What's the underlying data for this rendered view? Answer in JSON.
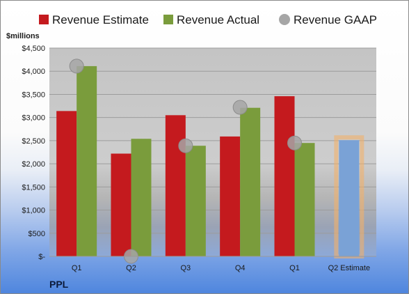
{
  "chart_data": {
    "type": "bar",
    "unit_label": "$millions",
    "ticker": "PPL",
    "categories": [
      "Q1",
      "Q2",
      "Q3",
      "Q4",
      "Q1",
      "Q2 Estimate"
    ],
    "ylim": [
      0,
      4500
    ],
    "y_ticks": [
      "$-",
      "$500",
      "$1,000",
      "$1,500",
      "$2,000",
      "$2,500",
      "$3,000",
      "$3,500",
      "$4,000",
      "$4,500"
    ],
    "y_tick_values": [
      0,
      500,
      1000,
      1500,
      2000,
      2500,
      3000,
      3500,
      4000,
      4500
    ],
    "grid": true,
    "legend_position": "top",
    "series": [
      {
        "name": "Revenue Estimate",
        "type": "bar",
        "color": "#c41a1e",
        "values": [
          3140,
          2220,
          3050,
          2590,
          3460,
          null
        ]
      },
      {
        "name": "Revenue Actual",
        "type": "bar",
        "color": "#7a9c3c",
        "values": [
          4110,
          2540,
          2390,
          3210,
          2450,
          null
        ]
      },
      {
        "name": "Revenue GAAP",
        "type": "scatter",
        "color": "#a6a6a6",
        "values": [
          4110,
          0,
          2390,
          3220,
          2450,
          null
        ]
      }
    ],
    "estimate_bar": {
      "category": "Q2 Estimate",
      "value": 2510,
      "color": "#7aa2d6",
      "outline_color": "#f2b06a"
    }
  }
}
